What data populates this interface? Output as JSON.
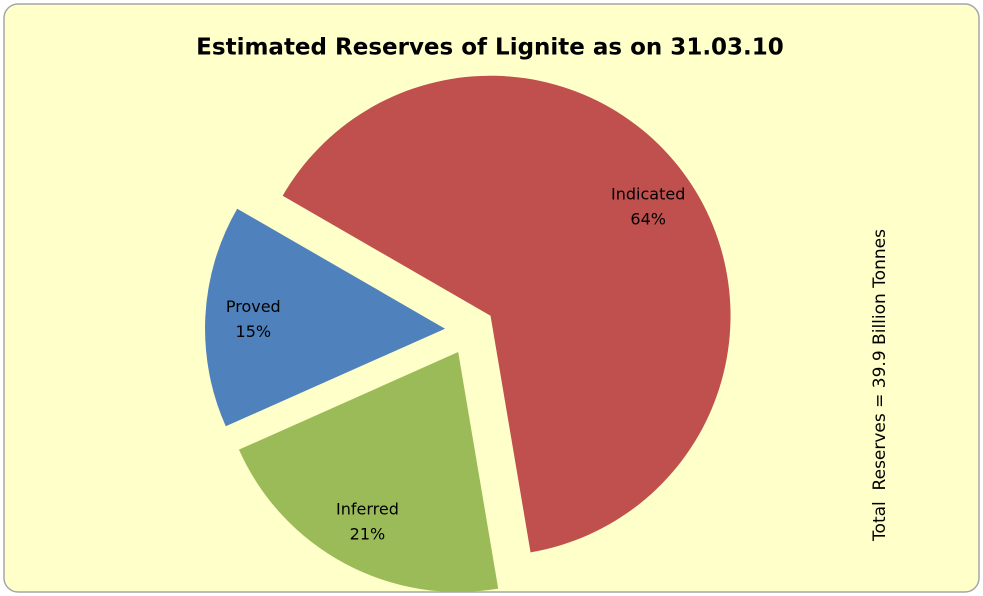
{
  "chart_data": {
    "type": "pie",
    "title": "Estimated Reserves of Lignite as on 31.03.10",
    "categories": [
      "Indicated",
      "Inferred",
      "Proved"
    ],
    "values": [
      64,
      21,
      15
    ],
    "value_labels": [
      "64%",
      "21%",
      "15%"
    ],
    "colors": [
      "#c0504d",
      "#9bbb59",
      "#4f81bd"
    ],
    "annotation": "Total  Reserves = 39.9 Billion Tonnes"
  }
}
